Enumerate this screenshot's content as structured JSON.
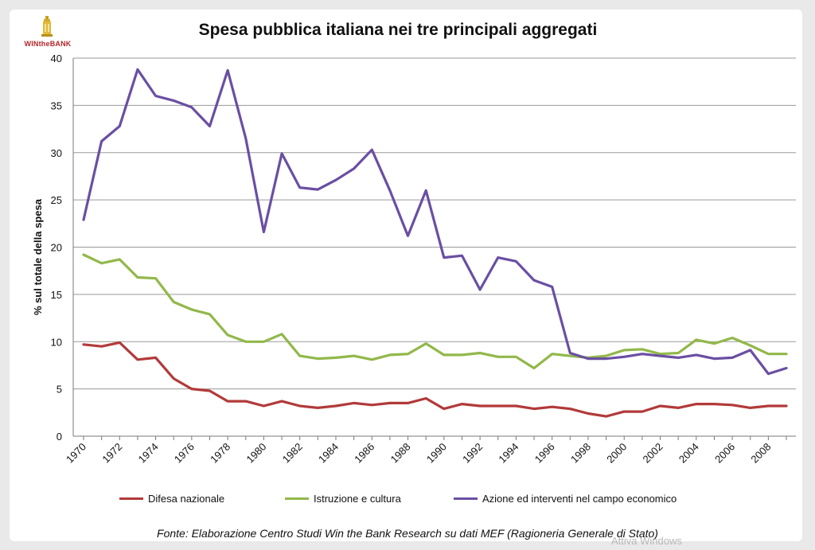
{
  "logo": {
    "text": "WINtheBANK"
  },
  "chart_data": {
    "type": "line",
    "title": "Spesa pubblica italiana nei tre principali aggregati",
    "xlabel": "",
    "ylabel": "% sul totale della spesa",
    "xlim": [
      1970,
      2009
    ],
    "ylim": [
      0,
      40
    ],
    "grid": true,
    "legend_position": "bottom",
    "x_ticks": [
      "1970",
      "1972",
      "1974",
      "1976",
      "1978",
      "1980",
      "1982",
      "1984",
      "1986",
      "1988",
      "1990",
      "1992",
      "1994",
      "1996",
      "1998",
      "2000",
      "2002",
      "2004",
      "2006",
      "2008"
    ],
    "y_ticks": [
      "0",
      "5",
      "10",
      "15",
      "20",
      "25",
      "30",
      "35",
      "40"
    ],
    "x": [
      1970,
      1971,
      1972,
      1973,
      1974,
      1975,
      1976,
      1977,
      1978,
      1979,
      1980,
      1981,
      1982,
      1983,
      1984,
      1985,
      1986,
      1987,
      1988,
      1989,
      1990,
      1991,
      1992,
      1993,
      1994,
      1995,
      1996,
      1997,
      1998,
      1999,
      2000,
      2001,
      2002,
      2003,
      2004,
      2005,
      2006,
      2007,
      2008,
      2009
    ],
    "series": [
      {
        "name": "Difesa nazionale",
        "color": "#b23a3a",
        "values": [
          9.7,
          9.5,
          9.9,
          8.1,
          8.3,
          6.1,
          5.0,
          4.8,
          3.7,
          3.7,
          3.2,
          3.7,
          3.2,
          3.0,
          3.2,
          3.5,
          3.3,
          3.5,
          3.5,
          4.0,
          2.9,
          3.4,
          3.2,
          3.2,
          3.2,
          2.9,
          3.1,
          2.9,
          2.4,
          2.1,
          2.6,
          2.6,
          3.2,
          3.0,
          3.4,
          3.4,
          3.3,
          3.0,
          3.2,
          3.2
        ]
      },
      {
        "name": "Istruzione e cultura",
        "color": "#92b84a",
        "values": [
          19.2,
          18.3,
          18.7,
          16.8,
          16.7,
          14.2,
          13.4,
          12.9,
          10.7,
          10.0,
          10.0,
          10.8,
          8.5,
          8.2,
          8.3,
          8.5,
          8.1,
          8.6,
          8.7,
          9.8,
          8.6,
          8.6,
          8.8,
          8.4,
          8.4,
          7.2,
          8.7,
          8.5,
          8.3,
          8.5,
          9.1,
          9.2,
          8.7,
          8.8,
          10.2,
          9.8,
          10.4,
          9.6,
          8.7,
          8.7
        ]
      },
      {
        "name": "Azione ed interventi nel campo economico",
        "color": "#6a4fa3",
        "values": [
          22.9,
          31.2,
          32.8,
          38.8,
          36.0,
          35.5,
          34.8,
          32.8,
          38.7,
          31.5,
          21.6,
          29.9,
          26.3,
          26.1,
          27.1,
          28.3,
          30.3,
          26.0,
          21.2,
          26.0,
          18.9,
          19.1,
          15.5,
          18.9,
          18.5,
          16.5,
          15.8,
          8.8,
          8.2,
          8.2,
          8.4,
          8.7,
          8.5,
          8.3,
          8.6,
          8.2,
          8.3,
          9.1,
          6.6,
          7.2
        ]
      }
    ]
  },
  "source_note": "Fonte: Elaborazione Centro Studi Win the Bank Research su dati MEF (Ragioneria Generale di Stato)",
  "watermark_text": "Attiva Windows"
}
